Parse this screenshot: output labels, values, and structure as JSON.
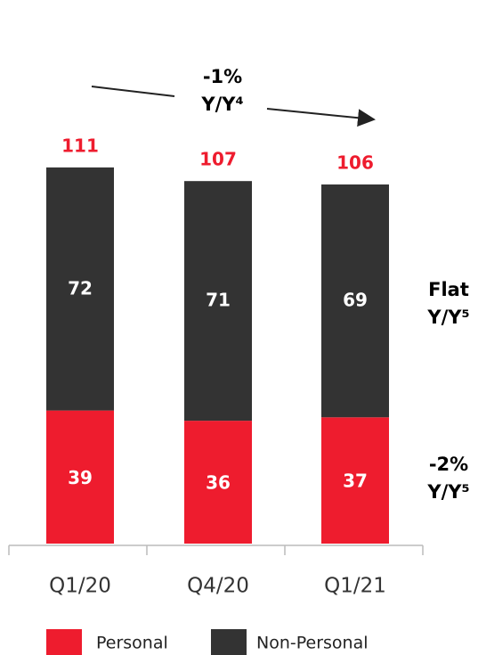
{
  "chart_data": {
    "type": "stacked_bar",
    "categories": [
      "Q1/20",
      "Q4/20",
      "Q1/21"
    ],
    "series": [
      {
        "name": "Personal",
        "color": "#ee1c2e",
        "values": [
          39,
          36,
          37
        ]
      },
      {
        "name": "Non-Personal",
        "color": "#333333",
        "values": [
          72,
          71,
          69
        ]
      }
    ],
    "totals": [
      111,
      107,
      106
    ],
    "annotations": {
      "total_change": [
        "-1%",
        "Y/Y⁴"
      ],
      "non_personal_change": [
        "Flat",
        "Y/Y⁵"
      ],
      "personal_change": [
        "-2%",
        "Y/Y⁵"
      ]
    }
  }
}
